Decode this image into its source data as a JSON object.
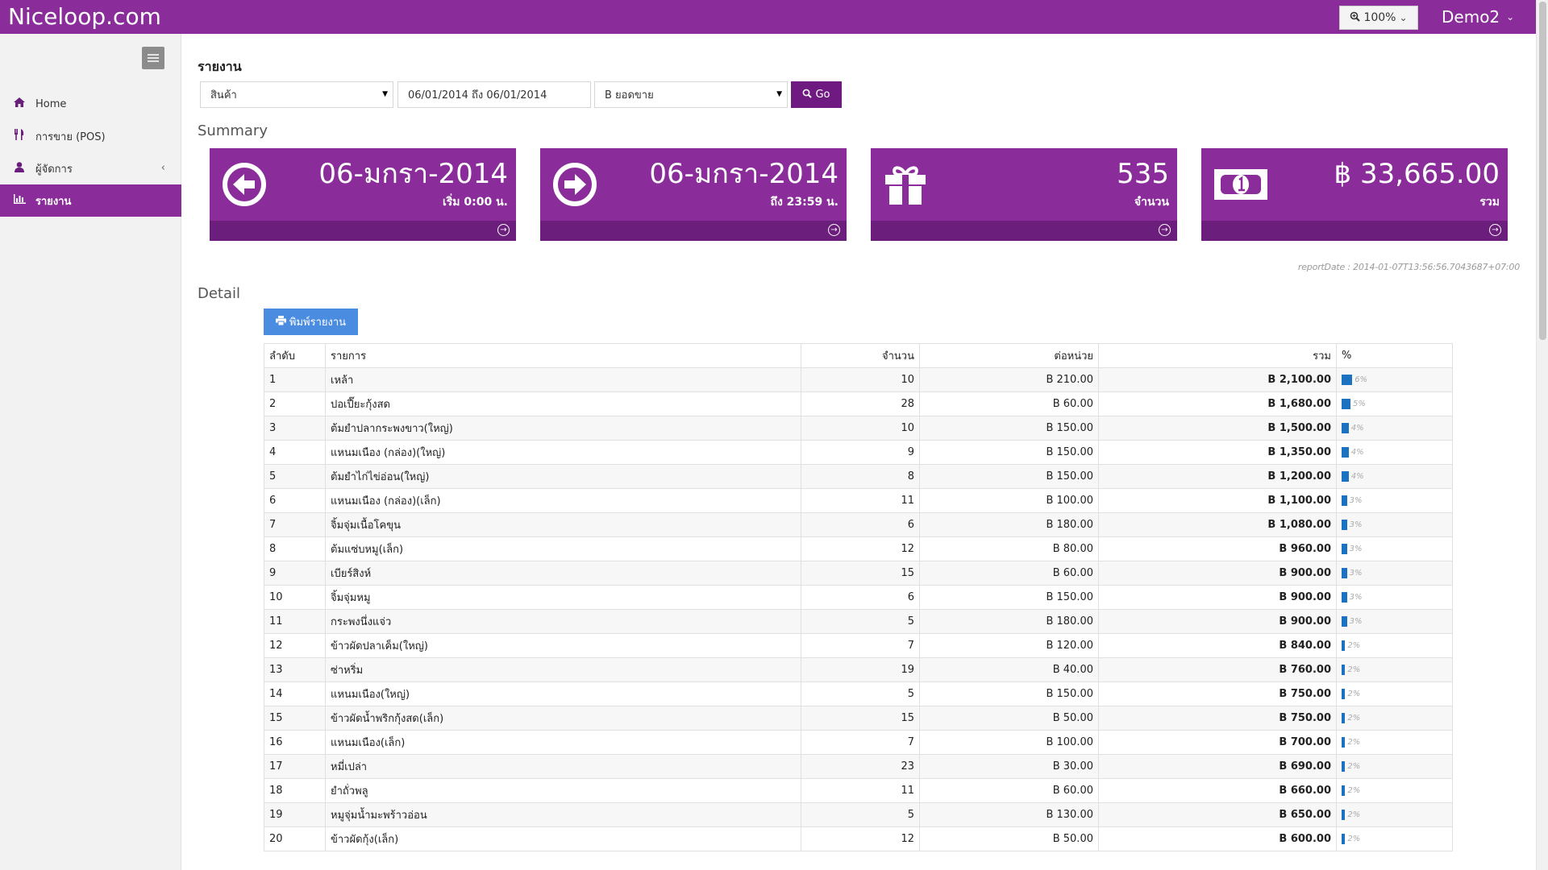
{
  "brand": "Niceloop.com",
  "zoom": {
    "label": "100%",
    "icon": "zoom-in-icon"
  },
  "user": {
    "name": "Demo2"
  },
  "sidebar": {
    "items": [
      {
        "label": "Home",
        "icon": "home-icon"
      },
      {
        "label": "การขาย (POS)",
        "icon": "utensils-icon"
      },
      {
        "label": "ผู้จัดการ",
        "icon": "user-icon"
      },
      {
        "label": "รายงาน",
        "icon": "bar-chart-icon",
        "active": true
      }
    ]
  },
  "report": {
    "heading": "รายงาน",
    "filter_type": "สินค้า",
    "date_range": "06/01/2014 ถึง 06/01/2014",
    "metric": "B ยอดขาย",
    "go_label": "Go"
  },
  "summary": {
    "heading": "Summary",
    "cards": [
      {
        "value": "06-มกรา-2014",
        "sub": "เริ่ม 0:00 น.",
        "icon": "arrow-left-circle-icon"
      },
      {
        "value": "06-มกรา-2014",
        "sub": "ถึง 23:59 น.",
        "icon": "arrow-right-circle-icon"
      },
      {
        "value": "535",
        "sub": "จำนวน",
        "icon": "gift-icon"
      },
      {
        "value": "฿ 33,665.00",
        "sub": "รวม",
        "icon": "money-icon"
      }
    ],
    "report_date": "reportDate : 2014-01-07T13:56:56.7043687+07:00"
  },
  "detail": {
    "heading": "Detail",
    "print_label": "พิมพ์รายงาน",
    "columns": [
      "ลำดับ",
      "รายการ",
      "จำนวน",
      "ต่อหน่วย",
      "รวม",
      "%"
    ],
    "rows": [
      {
        "no": "1",
        "name": "เหล้า",
        "qty": "10",
        "unit": "B 210.00",
        "total": "B 2,100.00",
        "pct": 6
      },
      {
        "no": "2",
        "name": "ปอเปี๊ยะกุ้งสด",
        "qty": "28",
        "unit": "B 60.00",
        "total": "B 1,680.00",
        "pct": 5
      },
      {
        "no": "3",
        "name": "ต้มยำปลากระพงขาว(ใหญ่)",
        "qty": "10",
        "unit": "B 150.00",
        "total": "B 1,500.00",
        "pct": 4
      },
      {
        "no": "4",
        "name": "แหนมเนือง (กล่อง)(ใหญ่)",
        "qty": "9",
        "unit": "B 150.00",
        "total": "B 1,350.00",
        "pct": 4
      },
      {
        "no": "5",
        "name": "ต้มยำไก่ไข่อ่อน(ใหญ่)",
        "qty": "8",
        "unit": "B 150.00",
        "total": "B 1,200.00",
        "pct": 4
      },
      {
        "no": "6",
        "name": "แหนมเนือง (กล่อง)(เล็ก)",
        "qty": "11",
        "unit": "B 100.00",
        "total": "B 1,100.00",
        "pct": 3
      },
      {
        "no": "7",
        "name": "จิ้มจุ่มเนื้อโคขุน",
        "qty": "6",
        "unit": "B 180.00",
        "total": "B 1,080.00",
        "pct": 3
      },
      {
        "no": "8",
        "name": "ต้มแซ่บหมู(เล็ก)",
        "qty": "12",
        "unit": "B 80.00",
        "total": "B 960.00",
        "pct": 3
      },
      {
        "no": "9",
        "name": "เบียร์สิงห์",
        "qty": "15",
        "unit": "B 60.00",
        "total": "B 900.00",
        "pct": 3
      },
      {
        "no": "10",
        "name": "จิ้มจุ่มหมู",
        "qty": "6",
        "unit": "B 150.00",
        "total": "B 900.00",
        "pct": 3
      },
      {
        "no": "11",
        "name": "กระพงนึ่งแจ่ว",
        "qty": "5",
        "unit": "B 180.00",
        "total": "B 900.00",
        "pct": 3
      },
      {
        "no": "12",
        "name": "ข้าวผัดปลาเค็ม(ใหญ่)",
        "qty": "7",
        "unit": "B 120.00",
        "total": "B 840.00",
        "pct": 2
      },
      {
        "no": "13",
        "name": "ซ่าหริ่ม",
        "qty": "19",
        "unit": "B 40.00",
        "total": "B 760.00",
        "pct": 2
      },
      {
        "no": "14",
        "name": "แหนมเนือง(ใหญ่)",
        "qty": "5",
        "unit": "B 150.00",
        "total": "B 750.00",
        "pct": 2
      },
      {
        "no": "15",
        "name": "ข้าวผัดน้ำพริกกุ้งสด(เล็ก)",
        "qty": "15",
        "unit": "B 50.00",
        "total": "B 750.00",
        "pct": 2
      },
      {
        "no": "16",
        "name": "แหนมเนือง(เล็ก)",
        "qty": "7",
        "unit": "B 100.00",
        "total": "B 700.00",
        "pct": 2
      },
      {
        "no": "17",
        "name": "หมี่เปล่า",
        "qty": "23",
        "unit": "B 30.00",
        "total": "B 690.00",
        "pct": 2
      },
      {
        "no": "18",
        "name": "ยำถั่วพลู",
        "qty": "11",
        "unit": "B 60.00",
        "total": "B 660.00",
        "pct": 2
      },
      {
        "no": "19",
        "name": "หมูจุ่มน้ำมะพร้าวอ่อน",
        "qty": "5",
        "unit": "B 130.00",
        "total": "B 650.00",
        "pct": 2
      },
      {
        "no": "20",
        "name": "ข้าวผัดกุ้ง(เล็ก)",
        "qty": "12",
        "unit": "B 50.00",
        "total": "B 600.00",
        "pct": 2
      }
    ]
  },
  "colors": {
    "brand": "#8a2d9a",
    "brand_dark": "#6c1e7d",
    "print": "#4a8ce0",
    "pct_bar": "#1a72c0"
  }
}
